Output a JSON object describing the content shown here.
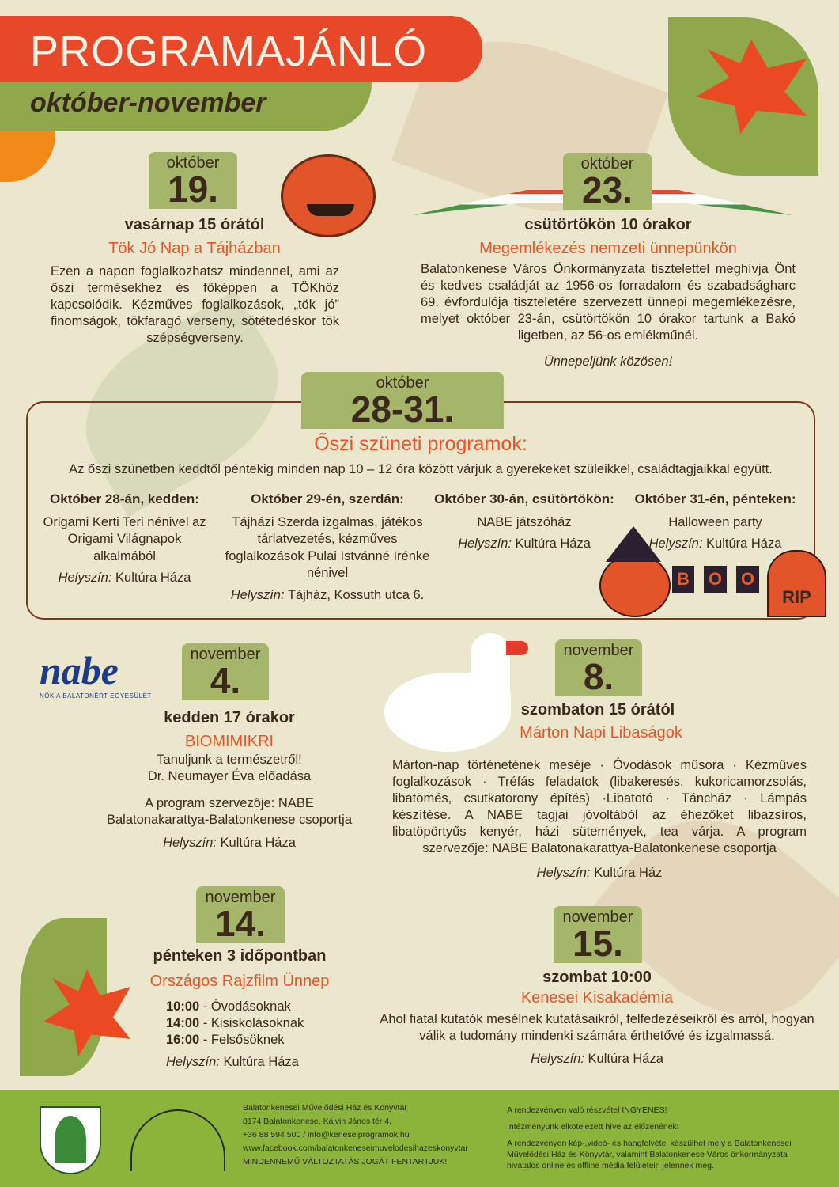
{
  "header": {
    "title": "PROGRAMAJÁNLÓ",
    "subtitle": "október-november"
  },
  "events": [
    {
      "month": "október",
      "day": "19.",
      "when": "vasárnap 15 órától",
      "title": "Tök Jó Nap a Tájházban",
      "text": "Ezen a napon foglalkozhatsz mindennel, ami az őszi termésekhez és főképpen a TÖKhöz kapcsolódik. Kézműves foglalkozások, „tök jó” finomságok, tökfaragó verseny, sötétedéskor tök szépségverseny.",
      "icon": "pumpkin-icon"
    },
    {
      "month": "október",
      "day": "23.",
      "when": "csütörtökön 10 órakor",
      "title": "Megemlékezés nemzeti ünnepünkön",
      "text": "Balatonkenese Város Önkormányzata tisztelettel meghívja Önt és kedves családját az 1956-os forradalom és szabadságharc 69. évfordulója tiszteletére szervezett ünnepi megemlékezésre, melyet október 23-án, csütörtökön 10 órakor tartunk a Bakó ligetben, az 56-os emlékműnél.",
      "closing": "Ünnepeljünk közösen!",
      "icon": "hungarian-ribbon-icon"
    },
    {
      "month": "november",
      "day": "4.",
      "when": "kedden 17 órakor",
      "title": "BIOMIMIKRI",
      "line1": "Tanuljunk a természetről!",
      "line2": "Dr. Neumayer Éva előadása",
      "org1": "A program szervezője: NABE",
      "org2": "Balatonakarattya-Balatonkenese csoportja",
      "place_label": "Helyszín:",
      "place": "Kultúra Háza",
      "logo": "nabe",
      "logo_sub": "Nők a Balatonért Egyesület"
    },
    {
      "month": "november",
      "day": "8.",
      "when": "szombaton 15 órától",
      "title": "Márton Napi Libaságok",
      "text": "Márton-nap történetének meséje · Óvodások műsora · Kézműves foglalkozások · Tréfás feladatok (libakeresés, kukoricamorzsolás, libatömés, csutkatorony építés) ·Libatotó · Táncház · Lámpás készítése. A NABE tagjai jóvoltából az éhezőket libazsíros, libatöpörtyűs kenyér, házi sütemények, tea várja. A program szervezője: NABE Balatonakarattya-Balatonkenese csoportja",
      "place_label": "Helyszín:",
      "place": "Kultúra Ház",
      "icon": "goose-icon"
    },
    {
      "month": "november",
      "day": "14.",
      "when": "pénteken 3 időpontban",
      "title": "Országos Rajzfilm Ünnep",
      "times": [
        {
          "t": "10:00",
          "d": " - Óvodásoknak"
        },
        {
          "t": "14:00",
          "d": " - Kisiskolásoknak"
        },
        {
          "t": "16:00",
          "d": " - Felsősöknek"
        }
      ],
      "place_label": "Helyszín:",
      "place": "Kultúra Háza"
    },
    {
      "month": "november",
      "day": "15.",
      "when": "szombat 10:00",
      "title": "Kenesei Kisakadémia",
      "text": "Ahol fiatal kutatók mesélnek kutatásaikról, felfedezéseikről és arról, hogyan válik a tudomány mindenki számára érthetővé és izgalmassá.",
      "place_label": "Helyszín:",
      "place": "Kultúra Háza"
    }
  ],
  "break": {
    "month": "október",
    "day": "28-31.",
    "title": "Őszi szüneti programok:",
    "intro": "Az őszi szünetben keddtől péntekig minden nap 10 – 12 óra között várjuk a gyerekeket szüleikkel, családtagjaikkal együtt.",
    "days": [
      {
        "head": "Október 28-án, kedden:",
        "text": "Origami Kerti Teri nénivel az Origami Világnapok alkalmából",
        "place_label": "Helyszín:",
        "place": "Kultúra Háza"
      },
      {
        "head": "Október 29-én, szerdán:",
        "text": "Tájházi Szerda izgalmas, játékos tárlatvezetés, kézműves foglalkozások Pulai Istvánné Irénke nénivel",
        "place_label": "Helyszín:",
        "place": "Tájház, Kossuth utca 6."
      },
      {
        "head": "Október 30-án, csütörtökön:",
        "text": "NABE játszóház",
        "place_label": "Helyszín:",
        "place": "Kultúra Háza"
      },
      {
        "head": "Október 31-én, pénteken:",
        "text": "Halloween party",
        "place_label": "Helyszín:",
        "place": "Kultúra Háza"
      }
    ],
    "boo": [
      "B",
      "O",
      "O"
    ],
    "rip": "RIP"
  },
  "footer": {
    "lines_left": [
      "Balatonkenesei Művelődési Ház és Könyvtár",
      "8174 Balatonkenese, Kálvin János tér 4.",
      "+36 88 594 500  /  info@keneseiprogramok.hu",
      "www.facebook.com/balatonkeneseimuvelodesihazeskonyvtar",
      "MINDENNEMŰ VÁLTOZTATÁS JOGÁT FENTARTJUK!"
    ],
    "lines_right": [
      "A rendezvényen való részvétel INGYENES!",
      "Intézményünk elkötelezett híve az élőzenének!",
      "A rendezvényen kép-,videó- és hangfelvétel készülhet mely a Balatonkenesei Művelődési Ház és Könyvtár, valamint Balatonkenese Város önkormányzata hivatalos online és offline média felületein jelennek meg."
    ]
  },
  "colors": {
    "header": "#e8482a",
    "green": "#8fa84c",
    "accent": "#e8542a",
    "background": "#ebe7cc",
    "footer": "#8db43a"
  }
}
